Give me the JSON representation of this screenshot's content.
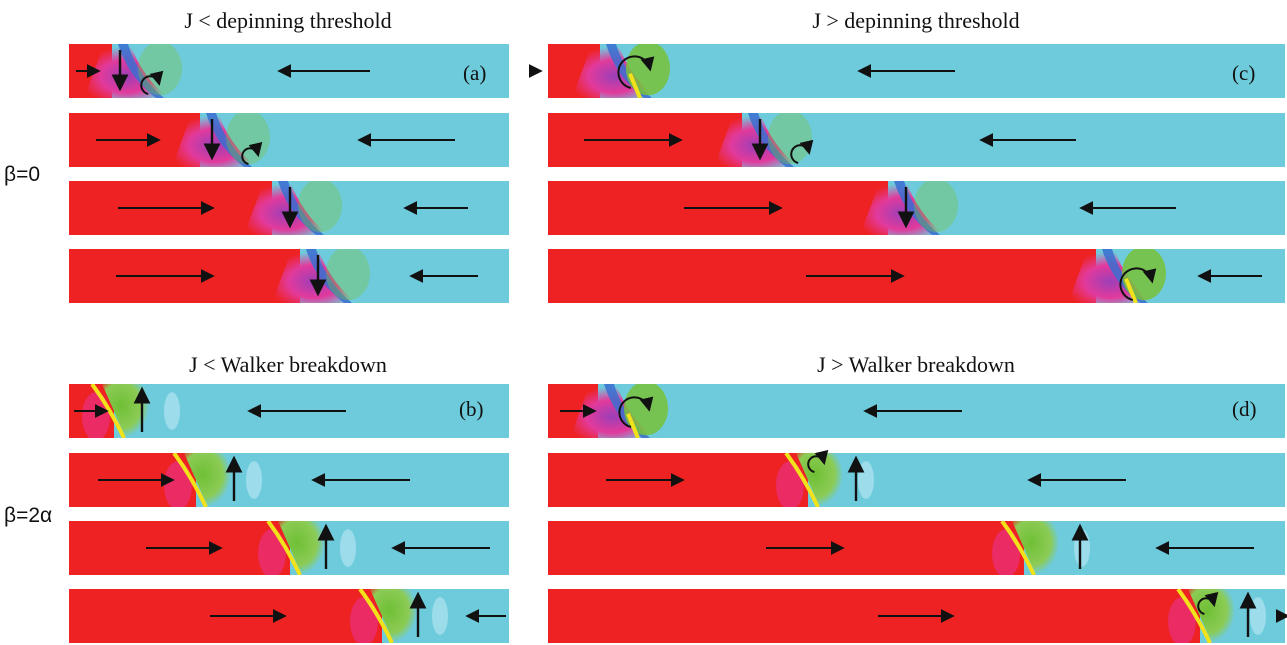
{
  "titles": {
    "top_left": "J < depinning threshold",
    "top_right": "J > depinning threshold",
    "bottom_left": "J < Walker breakdown",
    "bottom_right": "J > Walker breakdown"
  },
  "row_labels": {
    "top": "β=0",
    "bottom": "β=2α"
  },
  "panel_tags": {
    "a": "(a)",
    "b": "(b)",
    "c": "(c)",
    "d": "(d)"
  },
  "colors": {
    "left_domain": "#ee2222",
    "right_domain": "#6ecbdc",
    "wall_magenta": "#e8339a",
    "wall_blue": "#3a6fd0",
    "wall_green": "#78c23a",
    "wall_yellow": "#f2e21a",
    "arrow": "#111111"
  }
}
